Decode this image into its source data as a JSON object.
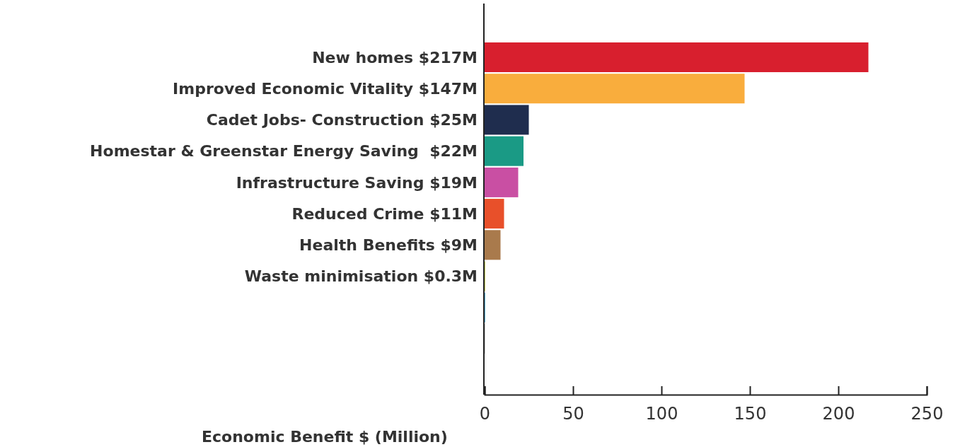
{
  "chart_data": {
    "type": "bar",
    "orientation": "horizontal",
    "xlabel": "Economic Benefit $ (Million)",
    "categories": [
      "New homes $217M",
      "Improved Economic Vitality $147M",
      "Cadet Jobs- Construction $25M",
      "Homestar & Greenstar Energy Saving  $22M",
      "Infrastructure Saving $19M",
      "Reduced Crime $11M",
      "Health Benefits $9M",
      "Waste minimisation $0.3M",
      null,
      null
    ],
    "values": [
      217,
      147,
      25,
      22,
      19,
      11,
      9,
      0.3,
      0.3,
      0.2
    ],
    "colors": [
      "#d81f2e",
      "#f9ad3d",
      "#1f2d4e",
      "#1a9a85",
      "#c94fa3",
      "#e8502a",
      "#a97a4c",
      "#b5c72a",
      "#2a9ad6",
      "#999999"
    ],
    "xlim": [
      0,
      250
    ],
    "xticks": [
      0,
      50,
      100,
      150,
      200,
      250
    ],
    "grid": false
  }
}
